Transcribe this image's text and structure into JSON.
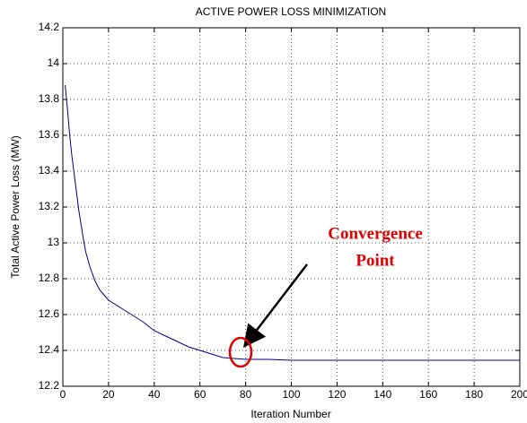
{
  "chart_data": {
    "type": "line",
    "title": "ACTIVE POWER LOSS MINIMIZATION",
    "x_label": "Iteration Number",
    "y_label": "Total Active Power Loss (MW)",
    "annotations": [
      "Convergence",
      "Point"
    ],
    "x": [
      1,
      2,
      3,
      4,
      5,
      6,
      7,
      8,
      9,
      10,
      12,
      14,
      16,
      18,
      20,
      25,
      30,
      35,
      40,
      45,
      50,
      55,
      60,
      65,
      70,
      75,
      80,
      90,
      100,
      150,
      200
    ],
    "series": [
      {
        "name": "Total Active Power Loss",
        "color": "#00008b",
        "values": [
          13.88,
          13.75,
          13.6,
          13.48,
          13.38,
          13.28,
          13.18,
          13.1,
          13.02,
          12.95,
          12.86,
          12.79,
          12.74,
          12.71,
          12.68,
          12.64,
          12.6,
          12.56,
          12.51,
          12.48,
          12.45,
          12.42,
          12.4,
          12.38,
          12.36,
          12.355,
          12.35,
          12.35,
          12.345,
          12.345,
          12.345
        ]
      }
    ],
    "xlim": [
      0,
      200
    ],
    "ylim": [
      12.2,
      14.2
    ],
    "xticks": [
      0,
      20,
      40,
      60,
      80,
      100,
      120,
      140,
      160,
      180,
      200
    ],
    "yticks": [
      12.2,
      12.4,
      12.6,
      12.8,
      13,
      13.2,
      13.4,
      13.6,
      13.8,
      14,
      14.2
    ],
    "grid": true
  }
}
